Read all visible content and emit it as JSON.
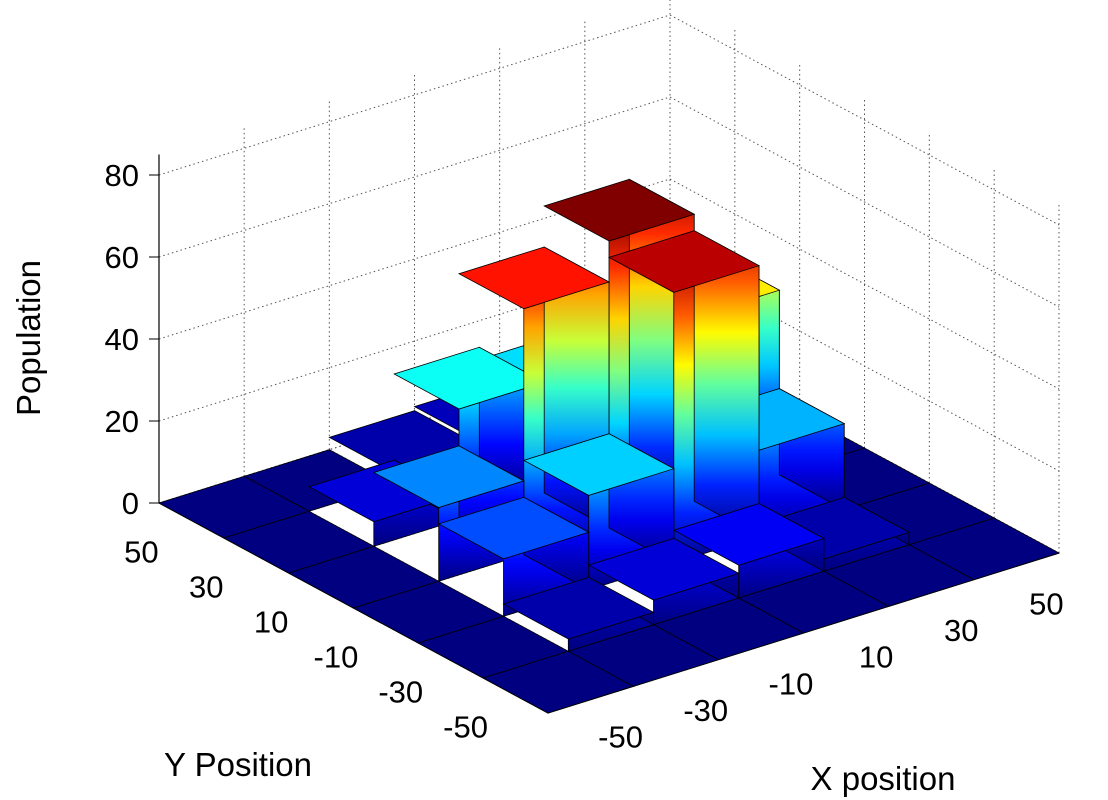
{
  "chart_data": {
    "type": "bar3d",
    "title": "",
    "xlabel": "X position",
    "ylabel": "Y Position",
    "zlabel": "Population",
    "x_ticks": [
      "-50",
      "-30",
      "-10",
      "10",
      "30",
      "50"
    ],
    "y_ticks": [
      "50",
      "30",
      "10",
      "-10",
      "-30",
      "-50"
    ],
    "z_ticks": [
      "0",
      "20",
      "40",
      "60",
      "80"
    ],
    "x_values": [
      -50,
      -30,
      -10,
      10,
      30,
      50
    ],
    "y_values": [
      -50,
      -30,
      -10,
      10,
      30,
      50
    ],
    "zlim": [
      0,
      85
    ],
    "grid": true,
    "colormap": "jet",
    "values": [
      [
        0,
        0,
        0,
        0,
        0,
        0
      ],
      [
        0,
        3,
        14,
        18,
        6,
        0
      ],
      [
        0,
        6,
        23,
        60,
        27,
        3
      ],
      [
        0,
        8,
        66,
        70,
        24,
        4
      ],
      [
        0,
        3,
        21,
        45,
        11,
        3
      ],
      [
        0,
        0,
        0,
        0,
        0,
        0
      ]
    ]
  }
}
